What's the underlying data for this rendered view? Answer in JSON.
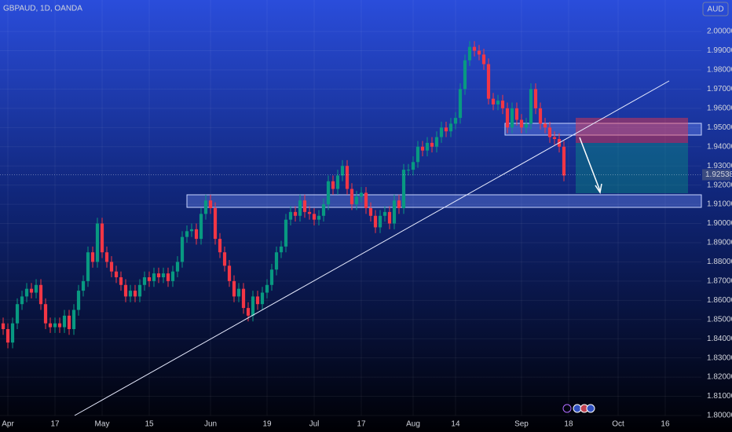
{
  "chart_data": {
    "type": "candlestick",
    "title": "GBPAUD, 1D, OANDA",
    "currency": "AUD",
    "up_color": "#089981",
    "down_color": "#f23645",
    "open": [
      1.848,
      1.845,
      1.838,
      1.848,
      1.858,
      1.862,
      1.866,
      1.864,
      1.868,
      1.858,
      1.848,
      1.846,
      1.848,
      1.846,
      1.852,
      1.845,
      1.855,
      1.865,
      1.87,
      1.885,
      1.88,
      1.9,
      1.885,
      1.88,
      1.875,
      1.872,
      1.868,
      1.862,
      1.865,
      1.862,
      1.868,
      1.872,
      1.87,
      1.874,
      1.872,
      1.874,
      1.87,
      1.875,
      1.88,
      1.893,
      1.896,
      1.897,
      1.892,
      1.905,
      1.912,
      1.908,
      1.892,
      1.885,
      1.878,
      1.87,
      1.862,
      1.866,
      1.856,
      1.852,
      1.862,
      1.858,
      1.864,
      1.868,
      1.876,
      1.885,
      1.888,
      1.902,
      1.906,
      1.904,
      1.912,
      1.906,
      1.905,
      1.902,
      1.904,
      1.91,
      1.922,
      1.918,
      1.925,
      1.93,
      1.918,
      1.91,
      1.914,
      1.916,
      1.908,
      1.904,
      1.898,
      1.904,
      1.906,
      1.9,
      1.912,
      1.908,
      1.928,
      1.928,
      1.932,
      1.94,
      1.938,
      1.942,
      1.94,
      1.945,
      1.95,
      1.948,
      1.952,
      1.955,
      1.97,
      1.985,
      1.992,
      1.99,
      1.988,
      1.983,
      1.965,
      1.962,
      1.964,
      1.96,
      1.95,
      1.96,
      1.954,
      1.95,
      1.952,
      1.97,
      1.96,
      1.952,
      1.95,
      1.945,
      1.944,
      1.94
    ],
    "high": [
      1.851,
      1.848,
      1.851,
      1.861,
      1.865,
      1.869,
      1.869,
      1.871,
      1.871,
      1.861,
      1.851,
      1.851,
      1.851,
      1.855,
      1.855,
      1.858,
      1.868,
      1.873,
      1.888,
      1.888,
      1.903,
      1.903,
      1.888,
      1.883,
      1.878,
      1.875,
      1.871,
      1.868,
      1.868,
      1.871,
      1.875,
      1.875,
      1.877,
      1.877,
      1.877,
      1.877,
      1.878,
      1.883,
      1.896,
      1.899,
      1.9,
      1.9,
      1.908,
      1.915,
      1.915,
      1.911,
      1.895,
      1.888,
      1.881,
      1.873,
      1.869,
      1.869,
      1.859,
      1.865,
      1.865,
      1.867,
      1.871,
      1.879,
      1.888,
      1.891,
      1.905,
      1.909,
      1.909,
      1.915,
      1.915,
      1.909,
      1.908,
      1.907,
      1.913,
      1.925,
      1.925,
      1.928,
      1.933,
      1.933,
      1.921,
      1.917,
      1.919,
      1.919,
      1.911,
      1.907,
      1.907,
      1.909,
      1.909,
      1.915,
      1.915,
      1.931,
      1.931,
      1.935,
      1.943,
      1.943,
      1.945,
      1.945,
      1.948,
      1.953,
      1.953,
      1.955,
      1.958,
      1.973,
      1.988,
      1.995,
      1.995,
      1.993,
      1.991,
      1.986,
      1.968,
      1.967,
      1.967,
      1.963,
      1.963,
      1.963,
      1.957,
      1.955,
      1.973,
      1.973,
      1.963,
      1.955,
      1.953,
      1.948,
      1.947,
      1.943
    ],
    "low": [
      1.842,
      1.835,
      1.835,
      1.845,
      1.855,
      1.859,
      1.861,
      1.861,
      1.855,
      1.845,
      1.843,
      1.843,
      1.843,
      1.843,
      1.842,
      1.842,
      1.852,
      1.862,
      1.867,
      1.877,
      1.877,
      1.882,
      1.877,
      1.872,
      1.869,
      1.865,
      1.859,
      1.859,
      1.859,
      1.859,
      1.865,
      1.867,
      1.867,
      1.869,
      1.869,
      1.867,
      1.867,
      1.872,
      1.877,
      1.89,
      1.893,
      1.889,
      1.889,
      1.902,
      1.905,
      1.889,
      1.882,
      1.875,
      1.867,
      1.859,
      1.859,
      1.853,
      1.849,
      1.849,
      1.855,
      1.855,
      1.861,
      1.865,
      1.873,
      1.882,
      1.885,
      1.899,
      1.901,
      1.901,
      1.903,
      1.902,
      1.899,
      1.899,
      1.901,
      1.907,
      1.915,
      1.915,
      1.922,
      1.915,
      1.907,
      1.907,
      1.911,
      1.905,
      1.901,
      1.895,
      1.895,
      1.901,
      1.897,
      1.897,
      1.905,
      1.905,
      1.925,
      1.925,
      1.929,
      1.935,
      1.935,
      1.937,
      1.937,
      1.942,
      1.945,
      1.945,
      1.949,
      1.952,
      1.967,
      1.982,
      1.987,
      1.985,
      1.98,
      1.962,
      1.959,
      1.959,
      1.957,
      1.947,
      1.947,
      1.951,
      1.947,
      1.947,
      1.949,
      1.957,
      1.949,
      1.947,
      1.942,
      1.941,
      1.937,
      1.922
    ],
    "close": [
      1.845,
      1.838,
      1.848,
      1.858,
      1.862,
      1.866,
      1.864,
      1.868,
      1.858,
      1.848,
      1.846,
      1.848,
      1.846,
      1.852,
      1.845,
      1.855,
      1.865,
      1.87,
      1.885,
      1.88,
      1.9,
      1.885,
      1.88,
      1.875,
      1.872,
      1.868,
      1.862,
      1.865,
      1.862,
      1.868,
      1.872,
      1.87,
      1.874,
      1.872,
      1.874,
      1.87,
      1.875,
      1.88,
      1.893,
      1.896,
      1.897,
      1.892,
      1.905,
      1.912,
      1.908,
      1.892,
      1.885,
      1.878,
      1.87,
      1.862,
      1.866,
      1.856,
      1.852,
      1.862,
      1.858,
      1.864,
      1.868,
      1.876,
      1.885,
      1.888,
      1.902,
      1.906,
      1.904,
      1.912,
      1.906,
      1.905,
      1.902,
      1.904,
      1.91,
      1.922,
      1.918,
      1.925,
      1.93,
      1.918,
      1.91,
      1.914,
      1.916,
      1.908,
      1.904,
      1.898,
      1.904,
      1.906,
      1.9,
      1.912,
      1.908,
      1.928,
      1.928,
      1.932,
      1.94,
      1.938,
      1.942,
      1.94,
      1.945,
      1.95,
      1.948,
      1.952,
      1.955,
      1.97,
      1.985,
      1.992,
      1.99,
      1.988,
      1.983,
      1.965,
      1.962,
      1.964,
      1.96,
      1.95,
      1.96,
      1.954,
      1.95,
      1.952,
      1.97,
      1.96,
      1.952,
      1.95,
      1.945,
      1.944,
      1.94,
      1.925
    ],
    "last_price": 1.92538,
    "xlim": [
      -0.67,
      148.17
    ],
    "xticks": [
      {
        "value": 1,
        "label": "Apr"
      },
      {
        "value": 11,
        "label": "17"
      },
      {
        "value": 21,
        "label": "May"
      },
      {
        "value": 31,
        "label": "15"
      },
      {
        "value": 44,
        "label": "Jun"
      },
      {
        "value": 56,
        "label": "19"
      },
      {
        "value": 66,
        "label": "Jul"
      },
      {
        "value": 76,
        "label": "17"
      },
      {
        "value": 87,
        "label": "Aug"
      },
      {
        "value": 96,
        "label": "14"
      },
      {
        "value": 110,
        "label": "Sep"
      },
      {
        "value": 120,
        "label": "18"
      },
      {
        "value": 130.5,
        "label": "Oct"
      },
      {
        "value": 140.5,
        "label": "16"
      }
    ],
    "ylim": [
      1.8,
      2.0164
    ],
    "yticks": [
      {
        "value": 1.8,
        "label": "1.80000"
      },
      {
        "value": 1.81,
        "label": "1.81000"
      },
      {
        "value": 1.82,
        "label": "1.82000"
      },
      {
        "value": 1.83,
        "label": "1.83000"
      },
      {
        "value": 1.84,
        "label": "1.84000"
      },
      {
        "value": 1.85,
        "label": "1.85000"
      },
      {
        "value": 1.86,
        "label": "1.86000"
      },
      {
        "value": 1.87,
        "label": "1.87000"
      },
      {
        "value": 1.88,
        "label": "1.88000"
      },
      {
        "value": 1.89,
        "label": "1.89000"
      },
      {
        "value": 1.9,
        "label": "1.90000"
      },
      {
        "value": 1.91,
        "label": "1.91000"
      },
      {
        "value": 1.92,
        "label": "1.92000"
      },
      {
        "value": 1.93,
        "label": "1.93000"
      },
      {
        "value": 1.94,
        "label": "1.94000"
      },
      {
        "value": 1.95,
        "label": "1.95000"
      },
      {
        "value": 1.96,
        "label": "1.96000"
      },
      {
        "value": 1.97,
        "label": "1.97000"
      },
      {
        "value": 1.98,
        "label": "1.98000"
      },
      {
        "value": 1.99,
        "label": "1.99000"
      },
      {
        "value": 2.0,
        "label": "2.00000"
      }
    ],
    "grid": true
  }
}
